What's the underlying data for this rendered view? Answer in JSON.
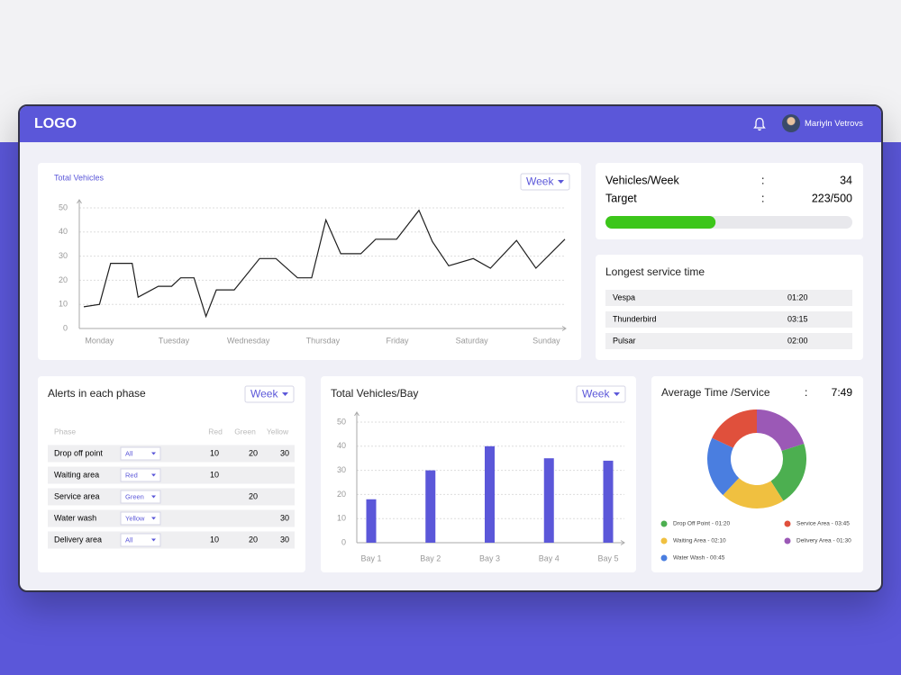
{
  "header": {
    "logo": "LOGO",
    "user_name": "Mariyln Vetrovs"
  },
  "chart_data": [
    {
      "type": "line",
      "title": "Total Vehicles",
      "filter": "Week",
      "x": [
        -0.21,
        0,
        0.15,
        0.44,
        0.52,
        0.79,
        0.97,
        1.09,
        1.27,
        1.43,
        1.57,
        1.81,
        2.15,
        2.37,
        2.66,
        2.85,
        3.04,
        3.24,
        3.51,
        3.71,
        3.99,
        4.29,
        4.47,
        4.69,
        5.02,
        5.25,
        5.6,
        5.86,
        6.25
      ],
      "xlim": [
        -0.21,
        6.25
      ],
      "xticks": [
        {
          "value": 0,
          "label": "Monday"
        },
        {
          "value": 1,
          "label": "Tuesday"
        },
        {
          "value": 2,
          "label": "Wednesday"
        },
        {
          "value": 3,
          "label": "Thursday"
        },
        {
          "value": 4,
          "label": "Friday"
        },
        {
          "value": 5,
          "label": "Saturday"
        },
        {
          "value": 6,
          "label": "Sunday"
        }
      ],
      "ylim": [
        0,
        50
      ],
      "yticks": [
        0,
        10,
        20,
        30,
        40,
        50
      ],
      "grid": true,
      "series": [
        {
          "color": "#1f1f1f",
          "values": [
            9,
            10,
            27,
            27,
            13,
            17.5,
            17.5,
            21,
            21,
            5,
            16,
            16,
            29,
            29,
            21,
            21,
            45,
            31,
            31,
            37,
            37,
            49,
            36,
            26,
            29,
            25,
            36.5,
            25,
            37
          ]
        }
      ]
    },
    {
      "type": "bar",
      "title": "Total Vehicles/Bay",
      "filter": "Week",
      "categories": [
        "Bay 1",
        "Bay 2",
        "Bay 3",
        "Bay 4",
        "Bay 5"
      ],
      "values": [
        18,
        30,
        40,
        35,
        34
      ],
      "color": "#5b57d9",
      "ylim": [
        0,
        50
      ],
      "yticks": [
        0,
        10,
        20,
        30,
        40,
        50
      ],
      "grid": true
    },
    {
      "type": "pie",
      "title": "Average Time /Service",
      "separator": ":",
      "total": "7:49",
      "donut": true,
      "series": [
        {
          "name": "Delivery Area - 01:30",
          "color": "#9b59b6",
          "value": 20
        },
        {
          "name": "Drop Off Point - 01:20",
          "color": "#4caf50",
          "value": 21
        },
        {
          "name": "Waiting Area - 02:10",
          "color": "#f0c040",
          "value": 21
        },
        {
          "name": "Water Wash - 00:45",
          "color": "#4a7ee0",
          "value": 20
        },
        {
          "name": "Service Area - 03:45",
          "color": "#e0503c",
          "value": 18
        }
      ]
    }
  ],
  "stats": {
    "vehicles": {
      "label": "Vehicles/Week",
      "separator": ":",
      "value": 34
    },
    "target": {
      "label": "Target",
      "separator": ":",
      "text": "223/500",
      "current": 223,
      "goal": 500
    }
  },
  "service_time": {
    "title": "Longest service time",
    "rows": [
      [
        "Vespa",
        "01:20"
      ],
      [
        "Thunderbird",
        "03:15"
      ],
      [
        "Pulsar",
        "02:00"
      ]
    ]
  },
  "alerts": {
    "title": "Alerts in each phase",
    "filter": "Week",
    "columns": {
      "phase": "Phase",
      "red": "Red",
      "green": "Green",
      "yellow": "Yellow"
    },
    "rows": [
      {
        "phase": "Drop off point",
        "filter": "All",
        "red": 10,
        "green": 20,
        "yellow": 30
      },
      {
        "phase": "Waiting area",
        "filter": "Red",
        "red": 10,
        "green": null,
        "yellow": null
      },
      {
        "phase": "Service area",
        "filter": "Green",
        "red": null,
        "green": 20,
        "yellow": null
      },
      {
        "phase": "Water wash",
        "filter": "Yellow",
        "red": null,
        "green": null,
        "yellow": 30
      },
      {
        "phase": "Delivery area",
        "filter": "All",
        "red": 10,
        "green": 20,
        "yellow": 30
      }
    ]
  }
}
